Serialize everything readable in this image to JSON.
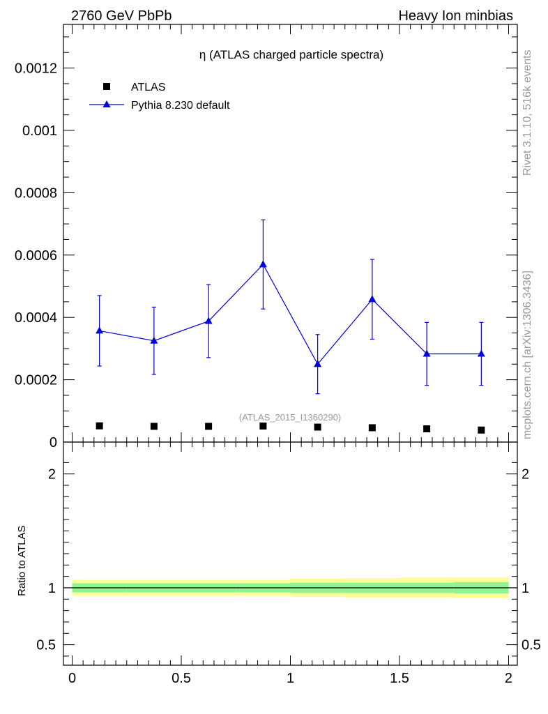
{
  "header": {
    "left": "2760 GeV PbPb",
    "right": "Heavy Ion minbias"
  },
  "side_text": {
    "top": "Rivet 3.1.10,  516k events",
    "bottom": "mcplots.cern.ch [arXiv:1306.3436]"
  },
  "chart_data": [
    {
      "type": "scatter",
      "title": "η (ATLAS charged particle spectra)",
      "watermark": "(ATLAS_2015_I1360290)",
      "xlim": [
        -0.04,
        2.04
      ],
      "ylim": [
        0,
        0.00134
      ],
      "y_ticks": [
        {
          "value": 0,
          "label": "0"
        },
        {
          "value": 0.0002,
          "label": "0.0002"
        },
        {
          "value": 0.0004,
          "label": "0.0004"
        },
        {
          "value": 0.0006,
          "label": "0.0006"
        },
        {
          "value": 0.0008,
          "label": "0.0008"
        },
        {
          "value": 0.001,
          "label": "0.001"
        },
        {
          "value": 0.0012,
          "label": "0.0012"
        }
      ],
      "legend": {
        "position": "top-left",
        "entries": [
          "ATLAS",
          "Pythia 8.230 default"
        ]
      },
      "series": [
        {
          "name": "ATLAS",
          "marker": "square",
          "color": "#000000",
          "x": [
            0.125,
            0.375,
            0.625,
            0.875,
            1.125,
            1.375,
            1.625,
            1.875
          ],
          "y": [
            5.2e-05,
            5.05e-05,
            5.05e-05,
            5.15e-05,
            4.8e-05,
            4.6e-05,
            4.25e-05,
            3.85e-05
          ]
        },
        {
          "name": "Pythia 8.230 default",
          "marker": "triangle",
          "color": "#0000dd",
          "x": [
            0.125,
            0.375,
            0.625,
            0.875,
            1.125,
            1.375,
            1.625,
            1.875
          ],
          "y": [
            0.000357,
            0.000325,
            0.000388,
            0.00057,
            0.00025,
            0.000458,
            0.000283,
            0.000283
          ],
          "err": [
            0.000113,
            0.000108,
            0.000117,
            0.000143,
            9.5e-05,
            0.000128,
            0.000101,
            0.000101
          ]
        }
      ]
    },
    {
      "type": "band",
      "ylabel": "Ratio to ATLAS",
      "xlim": [
        -0.04,
        2.04
      ],
      "ylim": [
        0.32,
        2.28
      ],
      "x_ticks": [
        {
          "value": 0,
          "label": "0"
        },
        {
          "value": 0.5,
          "label": "0.5"
        },
        {
          "value": 1,
          "label": "1"
        },
        {
          "value": 1.5,
          "label": "1.5"
        },
        {
          "value": 2,
          "label": "2"
        }
      ],
      "y_ticks": [
        {
          "value": 0.5,
          "label": "0.5"
        },
        {
          "value": 1,
          "label": "1"
        },
        {
          "value": 2,
          "label": "2"
        }
      ],
      "reference": 1,
      "bins": [
        {
          "x0": 0,
          "x1": 0.25,
          "green": [
            0.96,
            1.04
          ],
          "yellow": [
            0.93,
            1.07
          ]
        },
        {
          "x0": 0.25,
          "x1": 0.5,
          "green": [
            0.96,
            1.04
          ],
          "yellow": [
            0.93,
            1.07
          ]
        },
        {
          "x0": 0.5,
          "x1": 0.75,
          "green": [
            0.96,
            1.04
          ],
          "yellow": [
            0.93,
            1.07
          ]
        },
        {
          "x0": 0.75,
          "x1": 1.0,
          "green": [
            0.96,
            1.04
          ],
          "yellow": [
            0.93,
            1.07
          ]
        },
        {
          "x0": 1.0,
          "x1": 1.25,
          "green": [
            0.955,
            1.045
          ],
          "yellow": [
            0.92,
            1.08
          ]
        },
        {
          "x0": 1.25,
          "x1": 1.5,
          "green": [
            0.955,
            1.045
          ],
          "yellow": [
            0.915,
            1.085
          ]
        },
        {
          "x0": 1.5,
          "x1": 1.75,
          "green": [
            0.955,
            1.045
          ],
          "yellow": [
            0.915,
            1.09
          ]
        },
        {
          "x0": 1.75,
          "x1": 2.0,
          "green": [
            0.95,
            1.05
          ],
          "yellow": [
            0.91,
            1.09
          ]
        }
      ],
      "colors": {
        "green": "#90f590",
        "yellow": "#fefe98"
      }
    }
  ]
}
